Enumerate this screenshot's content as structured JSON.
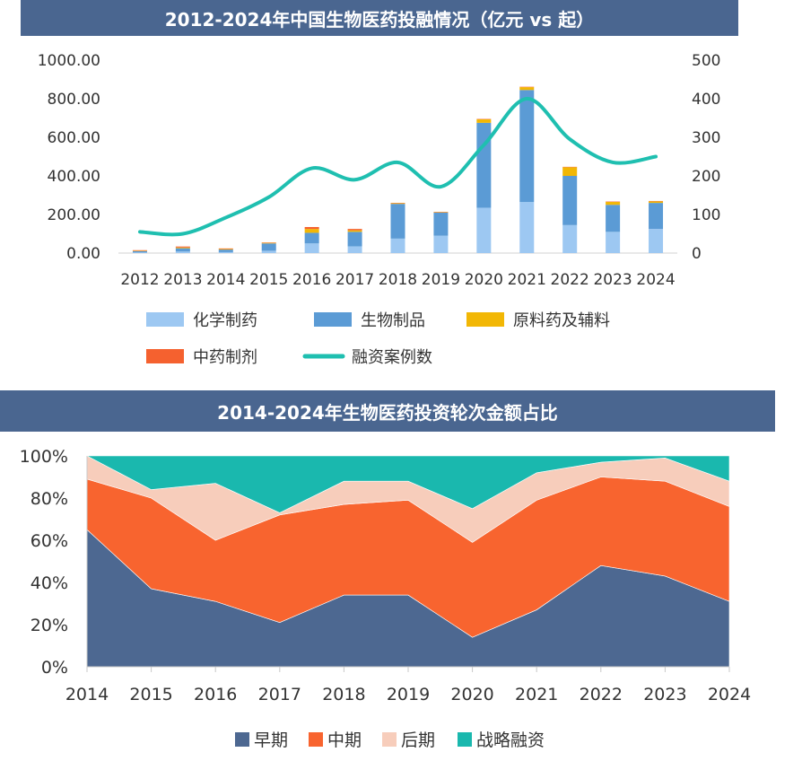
{
  "chart_data": [
    {
      "type": "bar",
      "title": "2012-2024年中国生物医药投融情况（亿元 vs 起）",
      "stacked": true,
      "categories": [
        "2012",
        "2013",
        "2014",
        "2015",
        "2016",
        "2017",
        "2018",
        "2019",
        "2020",
        "2021",
        "2022",
        "2023",
        "2024"
      ],
      "y_left": {
        "ylim": [
          0,
          1000
        ],
        "ticks": [
          "0.00",
          "200.00",
          "400.00",
          "600.00",
          "800.00",
          "1000.00"
        ]
      },
      "y_right": {
        "ylim": [
          0,
          500
        ],
        "ticks": [
          "0",
          "100",
          "200",
          "300",
          "400",
          "500"
        ]
      },
      "grid": false,
      "series": [
        {
          "name": "化学制药",
          "kind": "bar",
          "axis": "left",
          "color": "#9dc8f2",
          "values": [
            3,
            8,
            5,
            12,
            50,
            35,
            75,
            90,
            235,
            265,
            145,
            110,
            125
          ]
        },
        {
          "name": "生物制品",
          "kind": "bar",
          "axis": "left",
          "color": "#5b9bd5",
          "values": [
            7,
            17,
            13,
            38,
            55,
            75,
            180,
            120,
            440,
            580,
            255,
            140,
            135
          ]
        },
        {
          "name": "原料药及辅料",
          "kind": "bar",
          "axis": "left",
          "color": "#f2b705",
          "values": [
            2,
            4,
            3,
            3,
            20,
            8,
            3,
            2,
            18,
            15,
            45,
            15,
            8
          ]
        },
        {
          "name": "中药制剂",
          "kind": "bar",
          "axis": "left",
          "color": "#f5612f",
          "values": [
            3,
            5,
            3,
            2,
            10,
            7,
            2,
            2,
            2,
            2,
            2,
            2,
            2
          ]
        },
        {
          "name": "融资案例数",
          "kind": "line",
          "axis": "right",
          "color": "#1fbfb0",
          "values": [
            55,
            50,
            92,
            145,
            220,
            190,
            235,
            172,
            280,
            400,
            295,
            235,
            250
          ]
        }
      ],
      "legend": [
        "化学制药",
        "生物制品",
        "原料药及辅料",
        "中药制剂",
        "融资案例数"
      ]
    },
    {
      "type": "area",
      "title": "2014-2024年生物医药投资轮次金额占比",
      "stacked": true,
      "percent": true,
      "categories": [
        "2014",
        "2015",
        "2016",
        "2017",
        "2018",
        "2019",
        "2020",
        "2021",
        "2022",
        "2023",
        "2024"
      ],
      "ylim": [
        0,
        100
      ],
      "y_ticks": [
        "0%",
        "20%",
        "40%",
        "60%",
        "80%",
        "100%"
      ],
      "series": [
        {
          "name": "早期",
          "color": "#4d6891",
          "values": [
            65,
            37,
            31,
            21,
            34,
            34,
            14,
            27,
            48,
            43,
            31
          ]
        },
        {
          "name": "中期",
          "color": "#f8642f",
          "values": [
            24,
            43,
            29,
            51,
            43,
            45,
            45,
            52,
            42,
            45,
            45
          ]
        },
        {
          "name": "后期",
          "color": "#f7cdbb",
          "values": [
            11,
            4,
            27,
            1,
            11,
            9,
            16,
            13,
            7,
            11,
            12
          ]
        },
        {
          "name": "战略融资",
          "color": "#1ab8ae",
          "values": [
            0,
            16,
            13,
            27,
            12,
            12,
            25,
            8,
            3,
            1,
            12
          ]
        }
      ],
      "legend": [
        "早期",
        "中期",
        "后期",
        "战略融资"
      ]
    }
  ]
}
